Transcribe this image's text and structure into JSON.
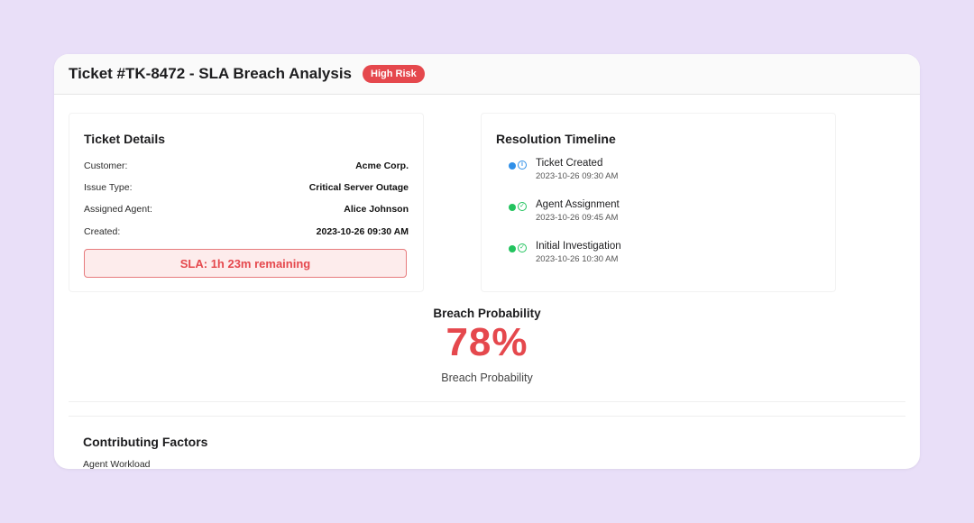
{
  "header": {
    "title": "Ticket #TK-8472 - SLA Breach Analysis",
    "risk_badge": "High Risk"
  },
  "ticket_details": {
    "title": "Ticket Details",
    "rows": [
      {
        "label": "Customer:",
        "value": "Acme Corp."
      },
      {
        "label": "Issue Type:",
        "value": "Critical Server Outage"
      },
      {
        "label": "Assigned Agent:",
        "value": "Alice Johnson"
      },
      {
        "label": "Created:",
        "value": "2023-10-26 09:30 AM"
      }
    ],
    "sla_text": "SLA: 1h 23m remaining"
  },
  "timeline": {
    "title": "Resolution Timeline",
    "items": [
      {
        "title": "Ticket Created",
        "time": "2023-10-26 09:30 AM",
        "status": "info",
        "color": "#2f8fe8",
        "icon": "info-icon"
      },
      {
        "title": "Agent Assignment",
        "time": "2023-10-26 09:45 AM",
        "status": "done",
        "color": "#22c35e",
        "icon": "check-circle-icon"
      },
      {
        "title": "Initial Investigation",
        "time": "2023-10-26 10:30 AM",
        "status": "done",
        "color": "#22c35e",
        "icon": "check-circle-icon"
      }
    ]
  },
  "breach": {
    "title": "Breach Probability",
    "value": "78%",
    "caption": "Breach Probability"
  },
  "factors": {
    "title": "Contributing Factors",
    "items": [
      "Agent Workload"
    ]
  },
  "colors": {
    "accent_red": "#e5484d",
    "background": "#e9dff8"
  }
}
